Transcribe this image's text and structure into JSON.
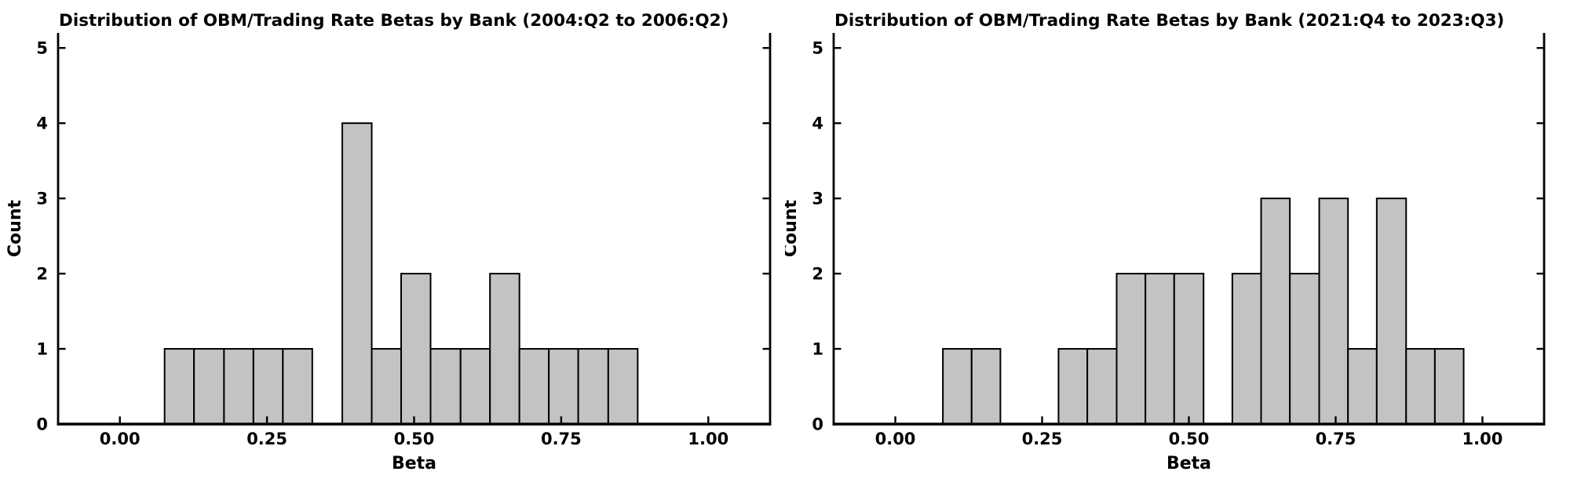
{
  "figure": {
    "background": "#ffffff",
    "text_color": "#000000",
    "axis_color": "#000000"
  },
  "chart_data": [
    {
      "type": "bar",
      "subtype": "histogram",
      "title": "Distribution of OBM/Trading Rate Betas by Bank (2004:Q2 to 2006:Q2)",
      "xlabel": "Beta",
      "ylabel": "Count",
      "bin_edges": [
        0.076,
        0.126,
        0.177,
        0.227,
        0.277,
        0.327,
        0.378,
        0.428,
        0.478,
        0.528,
        0.579,
        0.629,
        0.679,
        0.729,
        0.779,
        0.83,
        0.88
      ],
      "counts": [
        1,
        1,
        1,
        1,
        1,
        0,
        4,
        1,
        2,
        1,
        1,
        2,
        1,
        1,
        1,
        1
      ],
      "x_ticks": [
        0.0,
        0.25,
        0.5,
        0.75,
        1.0
      ],
      "x_tick_labels": [
        "0.00",
        "0.25",
        "0.50",
        "0.75",
        "1.00"
      ],
      "y_ticks": [
        0,
        1,
        2,
        3,
        4,
        5
      ],
      "y_tick_labels": [
        "0",
        "1",
        "2",
        "3",
        "4",
        "5"
      ],
      "xlim": [
        -0.105,
        1.105
      ],
      "ylim": [
        0,
        5.2
      ],
      "grid": false,
      "legend": null,
      "bar_fill": "#c3c3c3",
      "bar_edge": "#000000"
    },
    {
      "type": "bar",
      "subtype": "histogram",
      "title": "Distribution of OBM/Trading Rate Betas by Bank (2021:Q4 to 2023:Q3)",
      "xlabel": "Beta",
      "ylabel": "Count",
      "bin_edges": [
        0.081,
        0.13,
        0.179,
        0.229,
        0.278,
        0.327,
        0.377,
        0.426,
        0.475,
        0.525,
        0.574,
        0.623,
        0.672,
        0.722,
        0.771,
        0.82,
        0.87,
        0.919,
        0.968
      ],
      "counts": [
        1,
        1,
        0,
        0,
        1,
        1,
        2,
        2,
        2,
        0,
        2,
        3,
        2,
        3,
        1,
        3,
        1,
        1
      ],
      "x_ticks": [
        0.0,
        0.25,
        0.5,
        0.75,
        1.0
      ],
      "x_tick_labels": [
        "0.00",
        "0.25",
        "0.50",
        "0.75",
        "1.00"
      ],
      "y_ticks": [
        0,
        1,
        2,
        3,
        4,
        5
      ],
      "y_tick_labels": [
        "0",
        "1",
        "2",
        "3",
        "4",
        "5"
      ],
      "xlim": [
        -0.105,
        1.105
      ],
      "ylim": [
        0,
        5.2
      ],
      "grid": false,
      "legend": null,
      "bar_fill": "#c3c3c3",
      "bar_edge": "#000000"
    }
  ]
}
